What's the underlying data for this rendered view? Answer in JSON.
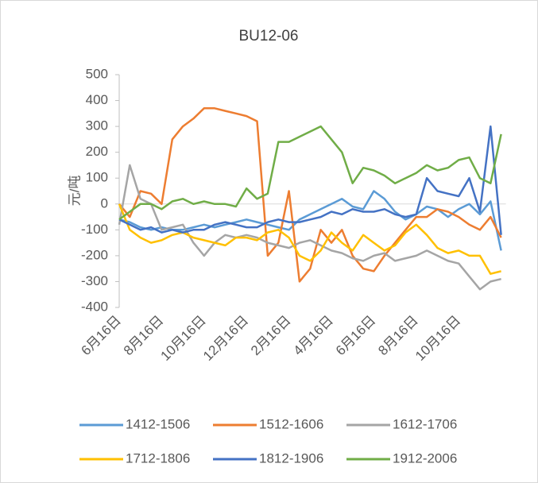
{
  "chart_data": {
    "type": "line",
    "title": "BU12-06",
    "y_label": "元/吨",
    "categories": [
      "6月16日",
      null,
      null,
      null,
      "8月16日",
      null,
      null,
      null,
      "10月16日",
      null,
      null,
      null,
      "12月16日",
      null,
      null,
      null,
      "2月16日",
      null,
      null,
      null,
      "4月16日",
      null,
      null,
      null,
      "6月16日",
      null,
      null,
      null,
      "8月16日",
      null,
      null,
      null,
      "10月16日",
      null,
      null,
      null,
      null
    ],
    "ylim": [
      -400,
      500
    ],
    "yticks": [
      -400,
      -300,
      -200,
      -100,
      0,
      100,
      200,
      300,
      400,
      500
    ],
    "series": [
      {
        "name": "1412-1506",
        "color": "#5b9bd5",
        "values": [
          -60,
          -70,
          -90,
          -100,
          -90,
          -100,
          -100,
          -90,
          -80,
          -90,
          -80,
          -70,
          -60,
          -70,
          -80,
          -90,
          -100,
          -60,
          -40,
          -20,
          0,
          20,
          -10,
          -20,
          50,
          20,
          -30,
          -60,
          -40,
          -10,
          -20,
          -50,
          -20,
          0,
          -40,
          10,
          -180
        ]
      },
      {
        "name": "1512-1606",
        "color": "#ed7d31",
        "values": [
          0,
          -50,
          50,
          40,
          0,
          250,
          300,
          330,
          370,
          370,
          360,
          350,
          340,
          320,
          -200,
          -150,
          50,
          -300,
          -250,
          -100,
          -150,
          -100,
          -200,
          -250,
          -260,
          -200,
          -150,
          -100,
          -50,
          -50,
          -20,
          -30,
          -50,
          -80,
          -100,
          -50,
          -130
        ]
      },
      {
        "name": "1612-1706",
        "color": "#a5a5a5",
        "values": [
          -80,
          150,
          20,
          0,
          -100,
          -90,
          -80,
          -150,
          -200,
          -150,
          -120,
          -130,
          -120,
          -130,
          -150,
          -160,
          -170,
          -150,
          -140,
          -160,
          -180,
          -190,
          -210,
          -220,
          -200,
          -190,
          -220,
          -210,
          -200,
          -180,
          -200,
          -220,
          -230,
          -280,
          -330,
          -300,
          -290
        ]
      },
      {
        "name": "1712-1806",
        "color": "#ffc000",
        "values": [
          0,
          -100,
          -130,
          -150,
          -140,
          -120,
          -110,
          -130,
          -140,
          -150,
          -160,
          -130,
          -130,
          -140,
          -110,
          -100,
          -130,
          -200,
          -220,
          -180,
          -110,
          -150,
          -180,
          -120,
          -150,
          -180,
          -160,
          -110,
          -80,
          -120,
          -170,
          -190,
          -180,
          -200,
          -200,
          -270,
          -260
        ]
      },
      {
        "name": "1812-1906",
        "color": "#4472c4",
        "values": [
          -60,
          -80,
          -100,
          -90,
          -110,
          -100,
          -110,
          -100,
          -100,
          -80,
          -70,
          -80,
          -90,
          -90,
          -70,
          -60,
          -70,
          -70,
          -60,
          -50,
          -30,
          -40,
          -20,
          -30,
          -30,
          -20,
          -40,
          -50,
          -40,
          100,
          50,
          40,
          30,
          100,
          -30,
          300,
          -120
        ]
      },
      {
        "name": "1912-2006",
        "color": "#70ad47",
        "values": [
          -60,
          -30,
          0,
          0,
          -20,
          10,
          20,
          0,
          10,
          0,
          0,
          -10,
          60,
          20,
          40,
          240,
          240,
          260,
          280,
          300,
          250,
          200,
          80,
          140,
          130,
          110,
          80,
          100,
          120,
          150,
          130,
          140,
          170,
          180,
          100,
          80,
          270
        ]
      }
    ]
  }
}
